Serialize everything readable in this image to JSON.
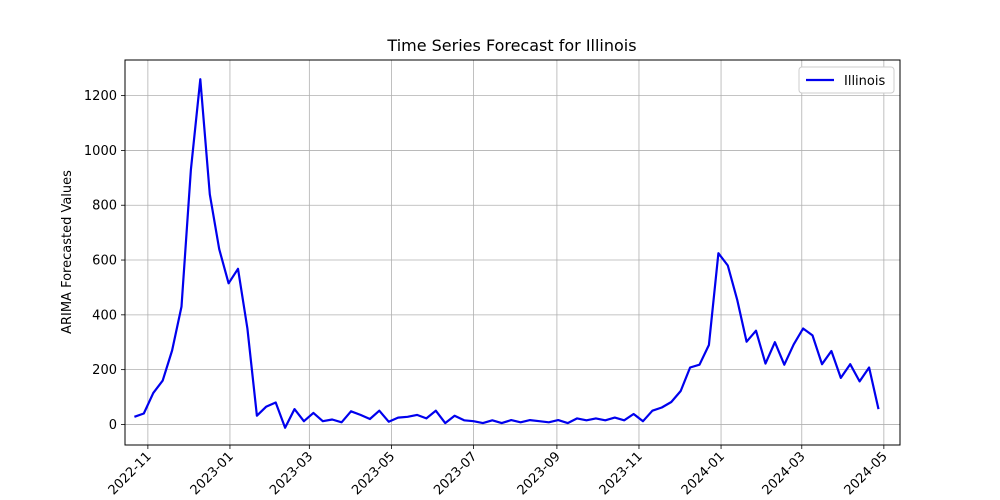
{
  "chart_data": {
    "type": "line",
    "title": "Time Series Forecast for Illinois",
    "xlabel": "",
    "ylabel": "ARIMA Forecasted Values",
    "ylim": [
      -75,
      1330
    ],
    "xlim": [
      "2022-10-15",
      "2024-05-13"
    ],
    "yticks": [
      0,
      200,
      400,
      600,
      800,
      1000,
      1200
    ],
    "xticks": [
      "2022-11-01",
      "2023-01-01",
      "2023-03-01",
      "2023-05-01",
      "2023-07-01",
      "2023-09-01",
      "2023-11-01",
      "2024-01-01",
      "2024-03-01",
      "2024-05-01"
    ],
    "xtick_labels": [
      "2022-11",
      "2023-01",
      "2023-03",
      "2023-05",
      "2023-07",
      "2023-09",
      "2023-11",
      "2024-01",
      "2024-03",
      "2024-05"
    ],
    "grid": true,
    "legend_position": "top-right",
    "series": [
      {
        "name": "Illinois",
        "color": "#0000ee",
        "x": [
          "2022-10-22",
          "2022-10-29",
          "2022-11-05",
          "2022-11-12",
          "2022-11-19",
          "2022-11-26",
          "2022-12-03",
          "2022-12-10",
          "2022-12-17",
          "2022-12-24",
          "2022-12-31",
          "2023-01-07",
          "2023-01-14",
          "2023-01-21",
          "2023-01-28",
          "2023-02-04",
          "2023-02-11",
          "2023-02-18",
          "2023-02-25",
          "2023-03-04",
          "2023-03-11",
          "2023-03-18",
          "2023-03-25",
          "2023-04-01",
          "2023-04-08",
          "2023-04-15",
          "2023-04-22",
          "2023-04-29",
          "2023-05-06",
          "2023-05-13",
          "2023-05-20",
          "2023-05-27",
          "2023-06-03",
          "2023-06-10",
          "2023-06-17",
          "2023-06-24",
          "2023-07-01",
          "2023-07-08",
          "2023-07-15",
          "2023-07-22",
          "2023-07-29",
          "2023-08-05",
          "2023-08-12",
          "2023-08-19",
          "2023-08-26",
          "2023-09-02",
          "2023-09-09",
          "2023-09-16",
          "2023-09-23",
          "2023-09-30",
          "2023-10-07",
          "2023-10-14",
          "2023-10-21",
          "2023-10-28",
          "2023-11-04",
          "2023-11-11",
          "2023-11-18",
          "2023-11-25",
          "2023-12-02",
          "2023-12-09",
          "2023-12-16",
          "2023-12-23",
          "2023-12-30",
          "2024-01-06",
          "2024-01-13",
          "2024-01-20",
          "2024-01-27",
          "2024-02-03",
          "2024-02-10",
          "2024-02-17",
          "2024-02-24",
          "2024-03-02",
          "2024-03-09",
          "2024-03-16",
          "2024-03-23",
          "2024-03-30",
          "2024-04-06",
          "2024-04-13",
          "2024-04-20",
          "2024-04-27"
        ],
        "values": [
          28,
          40,
          115,
          160,
          270,
          430,
          930,
          1260,
          840,
          640,
          515,
          568,
          350,
          32,
          65,
          80,
          -12,
          56,
          12,
          42,
          12,
          18,
          8,
          48,
          35,
          20,
          50,
          10,
          25,
          28,
          35,
          22,
          50,
          5,
          32,
          15,
          12,
          5,
          15,
          5,
          16,
          8,
          16,
          12,
          8,
          16,
          5,
          22,
          15,
          22,
          15,
          25,
          15,
          38,
          12,
          50,
          62,
          82,
          122,
          208,
          218,
          290,
          625,
          580,
          455,
          302,
          342,
          222,
          300,
          218,
          292,
          350,
          325,
          220,
          268,
          170,
          220,
          157,
          208,
          56
        ]
      }
    ]
  }
}
